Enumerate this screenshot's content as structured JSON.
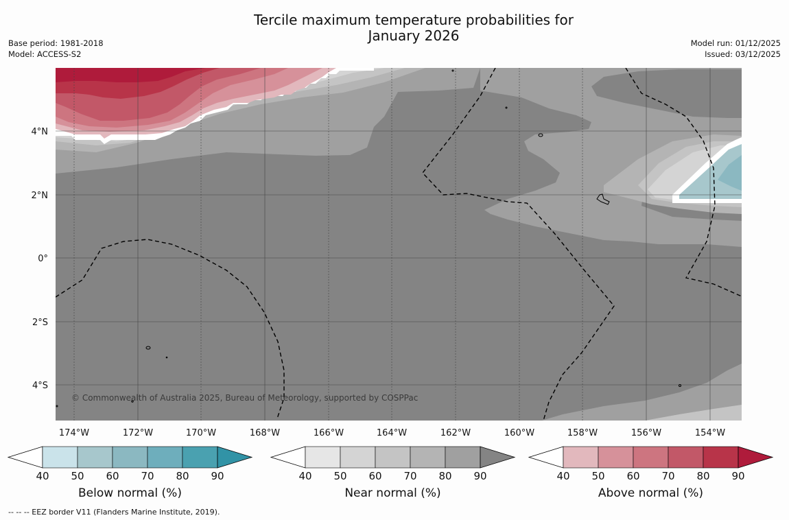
{
  "title": {
    "line1": "Tercile maximum temperature probabilities for",
    "line2": "January 2026"
  },
  "meta": {
    "base_period": "Base period: 1981-2018",
    "model": "Model: ACCESS-S2",
    "model_run": "Model run: 01/12/2025",
    "issued": "Issued: 03/12/2025"
  },
  "map": {
    "lon_labels": [
      "174°W",
      "172°W",
      "170°W",
      "168°W",
      "166°W",
      "164°W",
      "162°W",
      "160°W",
      "158°W",
      "156°W",
      "154°W"
    ],
    "lat_labels": [
      "4°N",
      "2°N",
      "0°",
      "2°S",
      "4°S"
    ],
    "copyright": "© Commonwealth of Australia 2025, Bureau of Meteorology, supported by COSPPac"
  },
  "colorbars": [
    {
      "title": "Below normal (%)",
      "ticks": [
        "40",
        "50",
        "60",
        "70",
        "80",
        "90"
      ],
      "colors": [
        "#ffffff",
        "#cae3ea",
        "#a7c7cc",
        "#8bb8c1",
        "#6eaebc",
        "#4aa1b0",
        "#3193a6"
      ]
    },
    {
      "title": "Near normal (%)",
      "ticks": [
        "40",
        "50",
        "60",
        "70",
        "80",
        "90"
      ],
      "colors": [
        "#ffffff",
        "#e6e6e6",
        "#d4d4d4",
        "#c4c4c4",
        "#b4b4b4",
        "#a0a0a0",
        "#848484"
      ]
    },
    {
      "title": "Above normal (%)",
      "ticks": [
        "40",
        "50",
        "60",
        "70",
        "80",
        "90"
      ],
      "colors": [
        "#ffffff",
        "#e2b8bd",
        "#d6919a",
        "#cd7580",
        "#c25868",
        "#b83449",
        "#af1b3b"
      ]
    }
  ],
  "footnote": "--  --  -- EEZ border V11 (Flanders Marine Institute, 2019)."
}
